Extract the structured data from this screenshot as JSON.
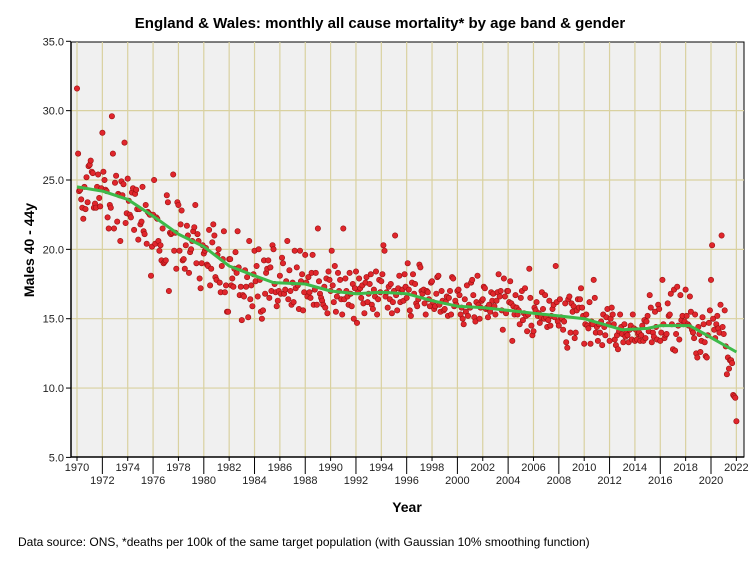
{
  "chart_data": {
    "type": "scatter",
    "title": "England & Wales: monthly all cause mortality* by age band & gender",
    "xlabel": "Year",
    "ylabel": "Males 40 - 44y",
    "footnote": "Data source: ONS, *deaths per 100k of the same target population (with Gaussian 10% smoothing function)",
    "xlim": [
      1969.5,
      2022.6
    ],
    "ylim": [
      5,
      35
    ],
    "grid": true,
    "colors": {
      "point": "#e0262c",
      "point_edge": "#9a1010",
      "smooth": "#3dba4a",
      "grid": "#d9d1a0",
      "plot_bg": "#f0f0f0"
    },
    "y_ticks": [
      "5.0",
      "10.0",
      "15.0",
      "20.0",
      "25.0",
      "30.0",
      "35.0"
    ],
    "x_ticks_upper": [
      "1970",
      "1974",
      "1978",
      "1982",
      "1986",
      "1990",
      "1994",
      "1998",
      "2002",
      "2006",
      "2010",
      "2014",
      "2018",
      "2022"
    ],
    "x_ticks_lower": [
      "1972",
      "1976",
      "1980",
      "1984",
      "1988",
      "1992",
      "1996",
      "2000",
      "2004",
      "2008",
      "2012",
      "2016",
      "2020"
    ],
    "x_start": 1970,
    "points_per_year": 12,
    "monthly_values": [
      31.6,
      26.9,
      24.2,
      24.3,
      23.6,
      23.0,
      22.2,
      24.5,
      22.9,
      25.2,
      23.4,
      26.0,
      26.1,
      26.4,
      25.6,
      25.5,
      23.0,
      23.3,
      23.0,
      24.5,
      25.4,
      23.7,
      23.1,
      24.4,
      28.4,
      25.6,
      25.0,
      24.3,
      24.2,
      22.3,
      21.5,
      23.2,
      23.0,
      29.6,
      26.9,
      21.5,
      24.8,
      25.3,
      22.0,
      24.0,
      23.9,
      20.6,
      24.9,
      23.9,
      24.7,
      27.7,
      21.9,
      22.6,
      25.1,
      23.5,
      22.5,
      22.3,
      24.1,
      24.4,
      21.4,
      24.0,
      24.3,
      22.9,
      20.7,
      22.9,
      21.8,
      22.0,
      24.5,
      21.3,
      21.1,
      23.2,
      20.4,
      22.7,
      22.6,
      22.5,
      18.1,
      20.2,
      22.5,
      25.0,
      20.4,
      22.3,
      22.2,
      20.6,
      19.9,
      20.3,
      19.2,
      21.5,
      19.0,
      19.1,
      19.2,
      23.9,
      23.4,
      17.0,
      21.2,
      21.1,
      21.2,
      25.4,
      19.9,
      21.2,
      18.6,
      23.4,
      23.2,
      19.9,
      21.8,
      22.8,
      19.2,
      19.3,
      18.6,
      20.3,
      21.7,
      21.0,
      18.3,
      19.8,
      20.0,
      20.6,
      21.3,
      21.6,
      23.2,
      19.0,
      21.1,
      20.6,
      17.9,
      17.2,
      19.0,
      20.3,
      19.7,
      19.9,
      20.1,
      18.9,
      18.8,
      21.4,
      17.4,
      18.6,
      20.5,
      21.8,
      21.0,
      18.0,
      17.8,
      19.6,
      20.0,
      17.6,
      16.9,
      18.8,
      19.3,
      21.3,
      16.9,
      17.4,
      15.5,
      15.5,
      19.3,
      19.3,
      17.4,
      17.9,
      17.3,
      18.6,
      19.8,
      18.3,
      21.3,
      18.7,
      16.7,
      17.3,
      14.9,
      16.7,
      16.6,
      18.5,
      17.3,
      18.0,
      15.1,
      20.6,
      16.4,
      17.4,
      15.9,
      18.2,
      19.9,
      17.7,
      18.8,
      16.6,
      20.0,
      17.8,
      15.5,
      15.0,
      15.6,
      19.2,
      16.8,
      18.3,
      18.6,
      19.2,
      16.5,
      18.7,
      17.0,
      20.3,
      20.0,
      17.5,
      16.9,
      15.9,
      16.3,
      17.0,
      18.1,
      16.8,
      19.4,
      19.0,
      16.8,
      17.1,
      17.7,
      20.6,
      16.4,
      18.5,
      17.0,
      16.0,
      17.6,
      16.2,
      19.9,
      17.2,
      18.7,
      17.4,
      15.7,
      19.9,
      17.7,
      18.2,
      15.6,
      16.9,
      19.6,
      17.6,
      16.6,
      18.0,
      16.9,
      16.5,
      18.3,
      19.6,
      16.0,
      17.1,
      18.3,
      16.0,
      21.5,
      17.7,
      16.8,
      16.5,
      16.3,
      16.0,
      17.3,
      15.8,
      17.9,
      15.4,
      18.4,
      17.8,
      17.0,
      19.9,
      17.4,
      16.2,
      18.8,
      15.5,
      16.6,
      18.3,
      17.0,
      17.8,
      16.4,
      15.3,
      21.5,
      16.4,
      17.9,
      17.0,
      16.6,
      16.0,
      18.3,
      16.8,
      15.9,
      17.5,
      15.0,
      17.2,
      18.4,
      14.7,
      16.9,
      17.9,
      17.2,
      16.5,
      17.4,
      16.1,
      15.4,
      17.6,
      18.0,
      16.2,
      16.8,
      17.5,
      18.2,
      16.0,
      15.7,
      17.1,
      16.6,
      18.4,
      15.3,
      16.4,
      17.8,
      16.9,
      17.7,
      18.2,
      20.3,
      19.9,
      16.6,
      16.9,
      15.8,
      17.3,
      16.4,
      17.5,
      15.4,
      16.2,
      17.0,
      21.0,
      16.7,
      15.6,
      17.2,
      18.1,
      16.2,
      16.9,
      17.1,
      16.3,
      18.2,
      17.3,
      16.5,
      19.0,
      17.1,
      15.6,
      15.2,
      17.6,
      18.2,
      16.8,
      17.5,
      16.1,
      15.9,
      16.4,
      18.9,
      18.7,
      17.0,
      16.8,
      17.1,
      16.1,
      15.3,
      17.0,
      16.9,
      16.4,
      15.9,
      17.6,
      17.7,
      16.2,
      15.7,
      15.9,
      16.8,
      18.0,
      18.1,
      16.0,
      15.5,
      17.0,
      16.3,
      15.6,
      15.7,
      16.2,
      16.6,
      15.2,
      16.5,
      17.0,
      15.3,
      18.0,
      17.9,
      15.9,
      16.3,
      16.0,
      17.0,
      17.1,
      16.7,
      15.3,
      15.8,
      15.0,
      14.6,
      16.4,
      15.5,
      17.4,
      15.2,
      16.0,
      15.8,
      17.6,
      17.8,
      16.7,
      15.1,
      14.8,
      16.2,
      18.1,
      16.0,
      15.0,
      15.8,
      16.3,
      16.4,
      17.3,
      17.2,
      15.7,
      15.8,
      15.1,
      16.0,
      15.5,
      16.9,
      16.3,
      16.8,
      15.9,
      15.3,
      16.3,
      16.9,
      18.2,
      16.6,
      17.0,
      15.6,
      14.2,
      17.9,
      16.6,
      15.4,
      17.0,
      17.0,
      16.2,
      17.7,
      16.1,
      13.4,
      15.9,
      15.3,
      16.7,
      15.8,
      15.3,
      15.6,
      14.6,
      16.5,
      17.0,
      14.9,
      15.4,
      17.2,
      15.2,
      14.1,
      15.3,
      18.6,
      16.5,
      14.5,
      13.8,
      14.1,
      15.8,
      15.6,
      16.2,
      15.2,
      15.4,
      14.7,
      15.1,
      16.9,
      15.7,
      15.0,
      16.7,
      15.1,
      14.4,
      14.9,
      16.3,
      14.5,
      15.2,
      15.7,
      16.0,
      15.1,
      18.8,
      16.2,
      14.8,
      14.5,
      16.4,
      15.1,
      15.0,
      14.2,
      14.8,
      16.1,
      13.3,
      12.9,
      16.4,
      16.6,
      14.0,
      16.1,
      15.5,
      15.9,
      13.6,
      14.0,
      15.6,
      16.4,
      15.8,
      16.4,
      17.2,
      15.8,
      15.2,
      13.2,
      14.6,
      15.3,
      14.5,
      14.3,
      16.2,
      13.2,
      14.8,
      14.6,
      17.8,
      16.5,
      14.0,
      14.4,
      13.4,
      14.6,
      14.0,
      14.8,
      13.1,
      15.3,
      14.4,
      13.8,
      15.1,
      15.7,
      14.6,
      13.4,
      15.0,
      15.8,
      15.3,
      14.6,
      13.5,
      13.1,
      13.8,
      12.8,
      14.1,
      15.3,
      14.4,
      13.9,
      13.3,
      14.6,
      13.7,
      14.0,
      13.8,
      13.3,
      14.2,
      14.5,
      13.5,
      15.3,
      14.3,
      13.4,
      14.2,
      13.5,
      13.9,
      14.0,
      13.4,
      13.8,
      14.5,
      13.4,
      14.9,
      13.6,
      14.8,
      15.2,
      14.1,
      16.7,
      15.8,
      13.3,
      14.0,
      13.7,
      15.5,
      14.4,
      13.5,
      16.0,
      15.7,
      13.4,
      14.0,
      17.8,
      14.6,
      13.6,
      13.8,
      13.9,
      16.1,
      15.2,
      15.3,
      16.8,
      14.6,
      12.8,
      17.1,
      12.7,
      13.9,
      17.3,
      14.5,
      13.5,
      16.7,
      14.9,
      15.2,
      14.6,
      14.8,
      17.1,
      15.2,
      14.6,
      14.5,
      16.6,
      15.5,
      14.2,
      14.0,
      13.6,
      15.3,
      12.5,
      12.2,
      14.4,
      13.9,
      12.6,
      13.4,
      15.1,
      14.6,
      13.3,
      12.3,
      12.2,
      13.8,
      14.7,
      15.6,
      17.8,
      20.3,
      15.0,
      14.2,
      13.6,
      14.6,
      15.2,
      14.3,
      14.0,
      16.0,
      21.0,
      14.4,
      13.9,
      15.6,
      13.0,
      11.0,
      12.2,
      11.4,
      12.0,
      12.0,
      11.8,
      9.5,
      9.4,
      9.3,
      7.6
    ],
    "smoothed": {
      "x": [
        1970,
        1972,
        1974,
        1976,
        1978,
        1980,
        1982,
        1984,
        1985.5,
        1988,
        1990,
        1992,
        1994,
        1996,
        1998,
        2000,
        2002,
        2004,
        2006,
        2008,
        2010,
        2011.5,
        2013,
        2015,
        2016,
        2018.3,
        2019.5,
        2022
      ],
      "y": [
        24.5,
        24.2,
        23.6,
        22.4,
        21.1,
        20.2,
        18.8,
        18.1,
        17.6,
        17.5,
        17.0,
        16.8,
        16.9,
        16.8,
        16.3,
        15.9,
        15.8,
        15.6,
        15.4,
        15.2,
        15.0,
        14.6,
        14.2,
        14.3,
        14.5,
        14.5,
        13.9,
        12.6
      ]
    }
  }
}
